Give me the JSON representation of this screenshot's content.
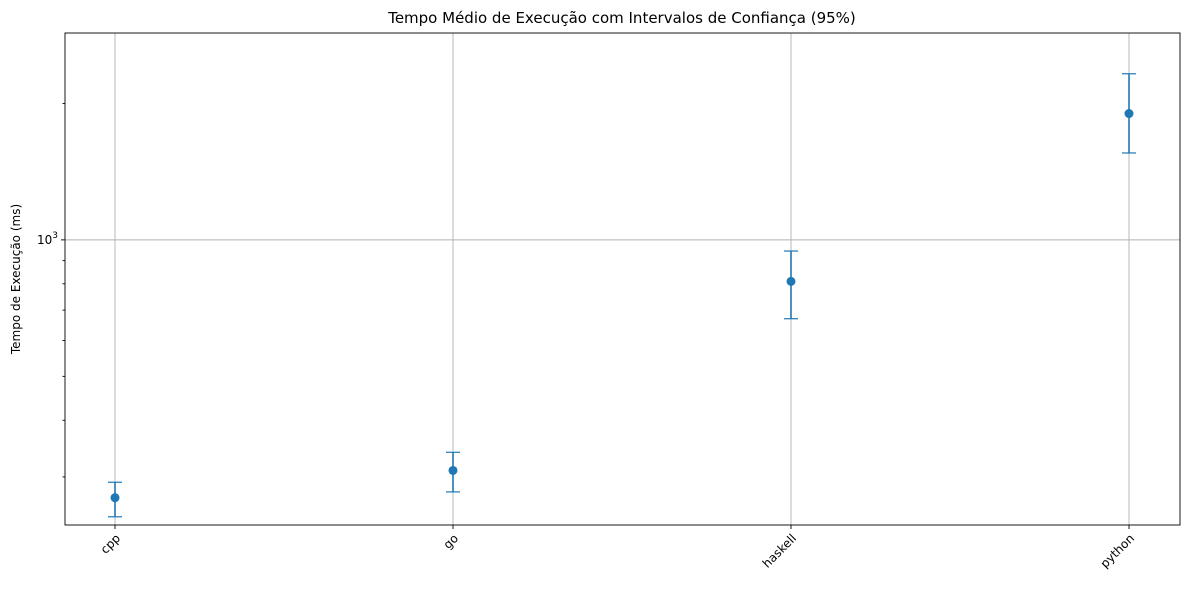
{
  "chart_data": {
    "type": "scatter",
    "title": "Tempo Médio de Execução com Intervalos de Confiança (95%)",
    "xlabel": "",
    "ylabel": "Tempo de Execução (ms)",
    "y_scale": "log",
    "ylim": [
      235,
      2860
    ],
    "y_major_tick_labels": [
      {
        "value": 1000,
        "base": "10",
        "exponent": "3"
      }
    ],
    "y_minor_ticks": [
      300,
      400,
      500,
      600,
      700,
      800,
      900,
      2000
    ],
    "categories": [
      "cpp",
      "go",
      "haskell",
      "python"
    ],
    "series": [
      {
        "values": [
          270,
          310,
          810,
          1900
        ],
        "ci_low": [
          245,
          278,
          670,
          1555
        ],
        "ci_high": [
          292,
          340,
          945,
          2325
        ]
      }
    ],
    "grid": true,
    "legend": "none",
    "colors": {
      "marker": "#1f77b4",
      "grid": "#b0b0b0"
    }
  }
}
